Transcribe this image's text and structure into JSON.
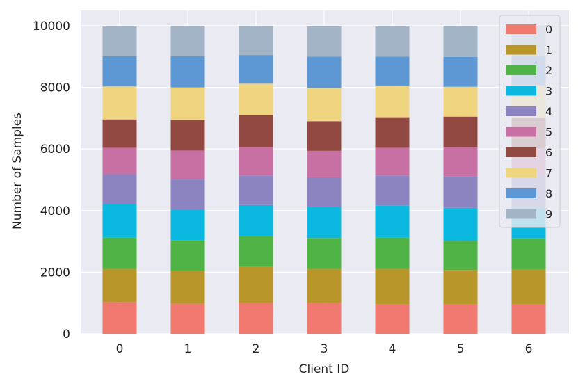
{
  "chart_data": {
    "type": "bar",
    "stacked": true,
    "categories": [
      "0",
      "1",
      "2",
      "3",
      "4",
      "5",
      "6"
    ],
    "xlabel": "Client ID",
    "ylabel": "Number of Samples",
    "ylim": [
      0,
      10000
    ],
    "yticks": [
      0,
      2000,
      4000,
      6000,
      8000,
      10000
    ],
    "grid": true,
    "legend_placement": "top-right",
    "colors": [
      "#f07a6f",
      "#b8962a",
      "#4fb445",
      "#0ab8e0",
      "#8b84c0",
      "#c86fa3",
      "#914941",
      "#f0d581",
      "#5e98d4",
      "#a2b4c6"
    ],
    "series": [
      {
        "name": "0",
        "values": [
          1030,
          980,
          1000,
          1000,
          970,
          970,
          970
        ]
      },
      {
        "name": "1",
        "values": [
          1080,
          1060,
          1180,
          1110,
          1140,
          1100,
          1130
        ]
      },
      {
        "name": "2",
        "values": [
          1020,
          1000,
          1000,
          1000,
          1020,
          950,
          1000
        ]
      },
      {
        "name": "3",
        "values": [
          1080,
          990,
          1000,
          1020,
          1030,
          1070,
          1000
        ]
      },
      {
        "name": "4",
        "values": [
          970,
          980,
          960,
          950,
          980,
          1020,
          1060
        ]
      },
      {
        "name": "5",
        "values": [
          860,
          940,
          910,
          860,
          900,
          950,
          860
        ]
      },
      {
        "name": "6",
        "values": [
          920,
          990,
          1050,
          960,
          990,
          990,
          980
        ]
      },
      {
        "name": "7",
        "values": [
          1070,
          1060,
          1020,
          1080,
          1030,
          970,
          1070
        ]
      },
      {
        "name": "8",
        "values": [
          980,
          1010,
          930,
          1020,
          940,
          970,
          940
        ]
      },
      {
        "name": "9",
        "values": [
          990,
          990,
          950,
          980,
          1000,
          1010,
          1000
        ]
      }
    ]
  }
}
